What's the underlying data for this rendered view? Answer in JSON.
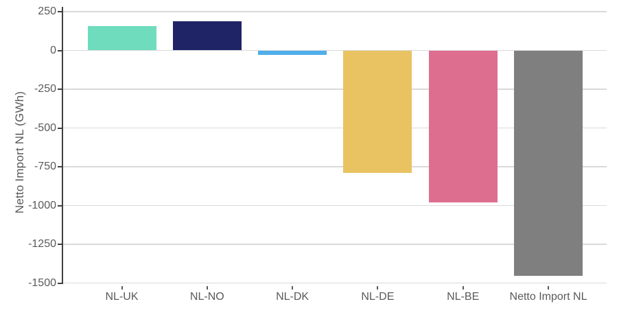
{
  "chart_data": {
    "type": "bar",
    "title": "",
    "xlabel": "",
    "ylabel": "Netto Import NL (GWh)",
    "categories": [
      "NL-UK",
      "NL-NO",
      "NL-DK",
      "NL-DE",
      "NL-BE",
      "Netto Import NL"
    ],
    "values": [
      155,
      190,
      -30,
      -790,
      -980,
      -1455
    ],
    "bar_colors": [
      "#6edcbd",
      "#1f2466",
      "#4faee9",
      "#e9c262",
      "#de6e8f",
      "#7f7f7f"
    ],
    "ylim": [
      -1500,
      250
    ],
    "yticks": [
      250,
      0,
      -250,
      -500,
      -750,
      -1000,
      -1250,
      -1500
    ],
    "grid": true,
    "legend": "none"
  },
  "colors": {
    "background": "#ffffff",
    "gridline": "#d9d9d9",
    "axis_line": "#3f3f3f",
    "tick_label": "#595959"
  }
}
